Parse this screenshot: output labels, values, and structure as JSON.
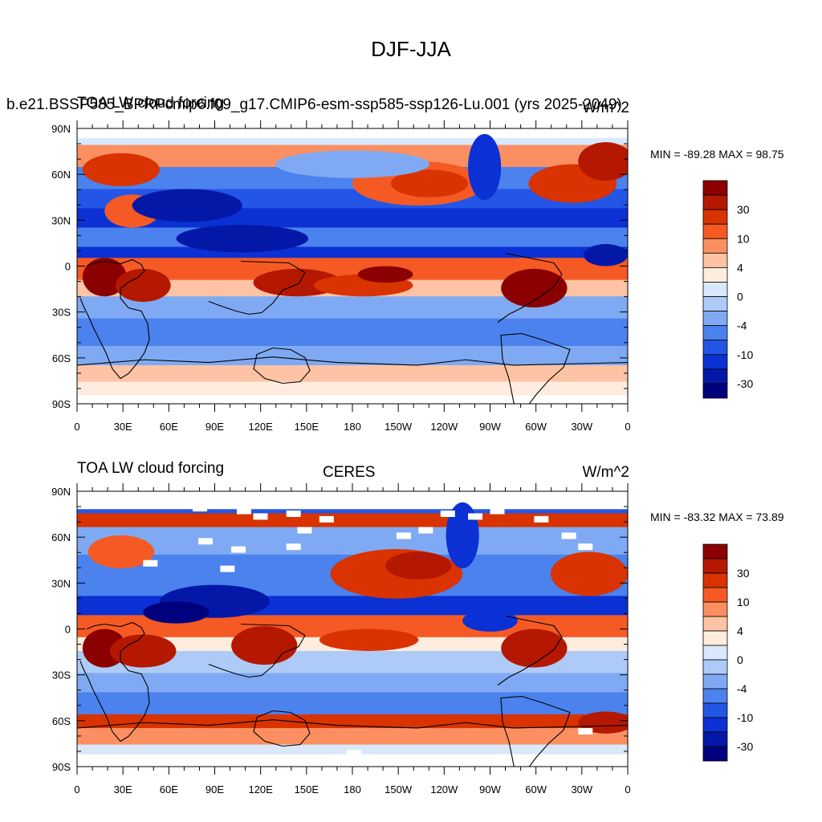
{
  "title": "DJF-JJA",
  "panels": [
    {
      "id": "model",
      "left_title": "TOA LW cloud forcing",
      "overlap_title": "b.e21.BSSP585_BPRPcmip6.f09_g17.CMIP6-esm-ssp585-ssp126-Lu.001 (yrs 2025-2049)",
      "right_title": "W/m^2",
      "min_max": "MIN = -89.28 MAX =  98.75"
    },
    {
      "id": "obs",
      "left_title": "TOA LW cloud forcing",
      "center_title": "CERES",
      "right_title": "W/m^2",
      "min_max": "MIN = -83.32 MAX =  73.89"
    }
  ],
  "axes": {
    "lat_labels": [
      "90N",
      "60N",
      "30N",
      "0",
      "30S",
      "60S",
      "90S"
    ],
    "lon_labels": [
      "0",
      "30E",
      "60E",
      "90E",
      "120E",
      "150E",
      "180",
      "150W",
      "120W",
      "90W",
      "60W",
      "30W",
      "0"
    ]
  },
  "colorbar": {
    "labels": [
      "30",
      "10",
      "4",
      "0",
      "-4",
      "-10",
      "-30"
    ],
    "colors": [
      "#8b0000",
      "#b51800",
      "#d83300",
      "#f55a24",
      "#fc8f62",
      "#fdc3a4",
      "#feeddf",
      "#d9e8fb",
      "#aecbf7",
      "#7faaf3",
      "#4b82ee",
      "#2356e6",
      "#0b31d5",
      "#0418a8",
      "#00007f"
    ]
  }
}
